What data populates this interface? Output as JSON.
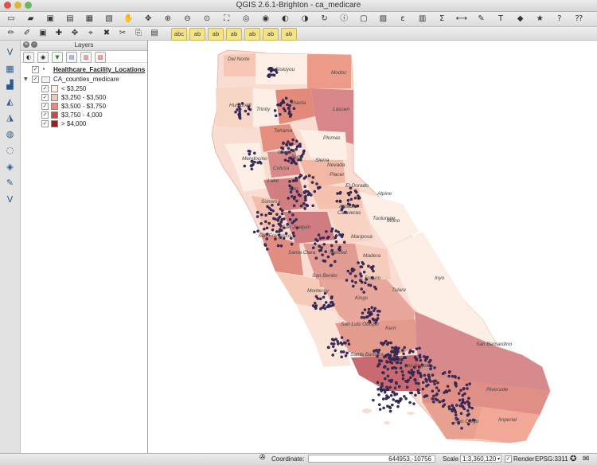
{
  "window": {
    "title": "QGIS 2.6.1-Brighton - ca_medicare"
  },
  "toolbar1": {
    "icons": [
      "new-project",
      "open-project",
      "save-project",
      "save-as",
      "print-composer",
      "composer-manager",
      "pan",
      "pan-to-selection",
      "zoom-in",
      "zoom-out",
      "zoom-actual",
      "zoom-full",
      "zoom-layer",
      "zoom-selection",
      "zoom-last",
      "zoom-next",
      "refresh",
      "identify",
      "select",
      "deselect",
      "field-calculator",
      "attribute-table",
      "statistics",
      "measure",
      "annotation",
      "text-annotation",
      "map-tips",
      "bookmark",
      "help",
      "whats-this"
    ]
  },
  "toolbar2": {
    "icons": [
      "toggle-editing",
      "current-edits",
      "save-edits",
      "add-feature",
      "move-feature",
      "node-tool",
      "delete-selected",
      "cut",
      "copy",
      "paste",
      "label-1",
      "label-2",
      "label-3",
      "label-4",
      "label-5",
      "label-6",
      "label-7"
    ]
  },
  "left_toolbar": {
    "icons": [
      "add-vector-layer",
      "add-raster-layer",
      "add-postgis-layer",
      "add-spatialite-layer",
      "add-mssql-layer",
      "add-wms-layer",
      "add-wcs-layer",
      "add-wfs-layer",
      "add-delimited-text",
      "new-shapefile"
    ]
  },
  "layers_panel": {
    "title": "Layers",
    "layers": [
      {
        "name": "Healthcare_Facility_Locations",
        "checked": true,
        "expanded": false
      },
      {
        "name": "CA_counties_medicare",
        "checked": true,
        "expanded": true
      }
    ],
    "legend": [
      {
        "label": "< $3,250",
        "color": "#fdeee6"
      },
      {
        "label": "$3,250 - $3,500",
        "color": "#f6c7b4"
      },
      {
        "label": "$3,500 - $3,750",
        "color": "#e98a78"
      },
      {
        "label": "$3,750 - 4,000",
        "color": "#d0483a"
      },
      {
        "label": "> $4,000",
        "color": "#9c1f1f"
      }
    ]
  },
  "map": {
    "county_labels": [
      "Del Norte",
      "Siskiyou",
      "Modoc",
      "Humboldt",
      "Trinity",
      "Shasta",
      "Lassen",
      "Tehama",
      "Plumas",
      "Mendocino",
      "Glenn",
      "Butte",
      "Sierra",
      "Nevada",
      "Colusa",
      "Placer",
      "Lake",
      "Yolo",
      "El Dorado",
      "Alpine",
      "Sonoma",
      "Amador",
      "Calaveras",
      "Mono",
      "San Joaquin",
      "Tuolumne",
      "San Francisco",
      "Mariposa",
      "Santa Clara",
      "Merced",
      "Madera",
      "San Benito",
      "Inyo",
      "Monterey",
      "Fresno",
      "Kings",
      "Tulare",
      "San Luis Obispo",
      "Kern",
      "Santa Barbara",
      "San Bernardino",
      "Los Angeles",
      "Riverside",
      "San Diego",
      "Imperial"
    ]
  },
  "status": {
    "coordinate_label": "Coordinate:",
    "coordinate_value": "644953,-10756",
    "scale_label": "Scale",
    "scale_value": "1:3,360,120",
    "render_label": "Render",
    "crs": "EPSG:3311"
  }
}
